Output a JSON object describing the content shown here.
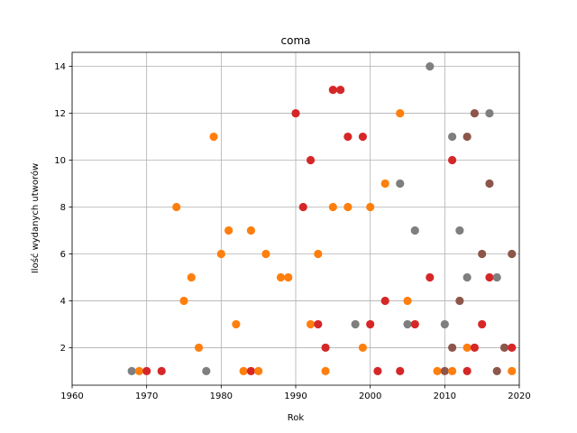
{
  "chart_data": {
    "type": "scatter",
    "title": "coma",
    "xlabel": "Rok",
    "ylabel": "Ilość wydanych utworów",
    "xlim": [
      1960,
      2020
    ],
    "ylim": [
      0.4,
      14.6
    ],
    "xticks": [
      1960,
      1970,
      1980,
      1990,
      2000,
      2010,
      2020
    ],
    "yticks": [
      2,
      4,
      6,
      8,
      10,
      12,
      14
    ],
    "grid": true,
    "colors": {
      "orange": "#ff7f0e",
      "red": "#d62728",
      "gray": "#7f7f7f",
      "brown": "#8c564b"
    },
    "points": [
      {
        "x": 1968,
        "y": 1,
        "c": "gray"
      },
      {
        "x": 1969,
        "y": 1,
        "c": "orange"
      },
      {
        "x": 1970,
        "y": 1,
        "c": "red"
      },
      {
        "x": 1972,
        "y": 1,
        "c": "red"
      },
      {
        "x": 1974,
        "y": 8,
        "c": "orange"
      },
      {
        "x": 1975,
        "y": 4,
        "c": "orange"
      },
      {
        "x": 1976,
        "y": 5,
        "c": "orange"
      },
      {
        "x": 1977,
        "y": 2,
        "c": "orange"
      },
      {
        "x": 1978,
        "y": 1,
        "c": "gray"
      },
      {
        "x": 1979,
        "y": 11,
        "c": "orange"
      },
      {
        "x": 1980,
        "y": 6,
        "c": "orange"
      },
      {
        "x": 1981,
        "y": 7,
        "c": "orange"
      },
      {
        "x": 1982,
        "y": 3,
        "c": "orange"
      },
      {
        "x": 1983,
        "y": 1,
        "c": "orange"
      },
      {
        "x": 1984,
        "y": 7,
        "c": "orange"
      },
      {
        "x": 1984,
        "y": 1,
        "c": "red"
      },
      {
        "x": 1985,
        "y": 1,
        "c": "orange"
      },
      {
        "x": 1986,
        "y": 6,
        "c": "orange"
      },
      {
        "x": 1988,
        "y": 5,
        "c": "orange"
      },
      {
        "x": 1989,
        "y": 5,
        "c": "orange"
      },
      {
        "x": 1990,
        "y": 12,
        "c": "red"
      },
      {
        "x": 1991,
        "y": 8,
        "c": "red"
      },
      {
        "x": 1992,
        "y": 10,
        "c": "red"
      },
      {
        "x": 1992,
        "y": 3,
        "c": "orange"
      },
      {
        "x": 1993,
        "y": 6,
        "c": "orange"
      },
      {
        "x": 1993,
        "y": 3,
        "c": "red"
      },
      {
        "x": 1994,
        "y": 2,
        "c": "red"
      },
      {
        "x": 1994,
        "y": 1,
        "c": "orange"
      },
      {
        "x": 1995,
        "y": 13,
        "c": "red"
      },
      {
        "x": 1995,
        "y": 8,
        "c": "orange"
      },
      {
        "x": 1996,
        "y": 13,
        "c": "red"
      },
      {
        "x": 1997,
        "y": 11,
        "c": "red"
      },
      {
        "x": 1997,
        "y": 8,
        "c": "orange"
      },
      {
        "x": 1998,
        "y": 3,
        "c": "gray"
      },
      {
        "x": 1999,
        "y": 11,
        "c": "red"
      },
      {
        "x": 1999,
        "y": 2,
        "c": "orange"
      },
      {
        "x": 2000,
        "y": 8,
        "c": "orange"
      },
      {
        "x": 2000,
        "y": 3,
        "c": "red"
      },
      {
        "x": 2001,
        "y": 1,
        "c": "red"
      },
      {
        "x": 2002,
        "y": 9,
        "c": "orange"
      },
      {
        "x": 2002,
        "y": 4,
        "c": "red"
      },
      {
        "x": 2004,
        "y": 12,
        "c": "orange"
      },
      {
        "x": 2004,
        "y": 9,
        "c": "gray"
      },
      {
        "x": 2004,
        "y": 1,
        "c": "red"
      },
      {
        "x": 2005,
        "y": 4,
        "c": "orange"
      },
      {
        "x": 2005,
        "y": 3,
        "c": "gray"
      },
      {
        "x": 2006,
        "y": 7,
        "c": "gray"
      },
      {
        "x": 2006,
        "y": 3,
        "c": "red"
      },
      {
        "x": 2008,
        "y": 14,
        "c": "gray"
      },
      {
        "x": 2008,
        "y": 5,
        "c": "red"
      },
      {
        "x": 2009,
        "y": 1,
        "c": "orange"
      },
      {
        "x": 2010,
        "y": 3,
        "c": "gray"
      },
      {
        "x": 2010,
        "y": 1,
        "c": "brown"
      },
      {
        "x": 2011,
        "y": 11,
        "c": "gray"
      },
      {
        "x": 2011,
        "y": 10,
        "c": "red"
      },
      {
        "x": 2011,
        "y": 2,
        "c": "brown"
      },
      {
        "x": 2011,
        "y": 1,
        "c": "orange"
      },
      {
        "x": 2012,
        "y": 7,
        "c": "gray"
      },
      {
        "x": 2012,
        "y": 4,
        "c": "brown"
      },
      {
        "x": 2013,
        "y": 11,
        "c": "brown"
      },
      {
        "x": 2013,
        "y": 5,
        "c": "gray"
      },
      {
        "x": 2013,
        "y": 2,
        "c": "orange"
      },
      {
        "x": 2013,
        "y": 1,
        "c": "red"
      },
      {
        "x": 2014,
        "y": 12,
        "c": "brown"
      },
      {
        "x": 2014,
        "y": 2,
        "c": "red"
      },
      {
        "x": 2015,
        "y": 6,
        "c": "brown"
      },
      {
        "x": 2015,
        "y": 3,
        "c": "red"
      },
      {
        "x": 2016,
        "y": 12,
        "c": "gray"
      },
      {
        "x": 2016,
        "y": 9,
        "c": "brown"
      },
      {
        "x": 2016,
        "y": 5,
        "c": "red"
      },
      {
        "x": 2017,
        "y": 5,
        "c": "gray"
      },
      {
        "x": 2017,
        "y": 1,
        "c": "brown"
      },
      {
        "x": 2018,
        "y": 2,
        "c": "brown"
      },
      {
        "x": 2019,
        "y": 6,
        "c": "brown"
      },
      {
        "x": 2019,
        "y": 2,
        "c": "red"
      },
      {
        "x": 2019,
        "y": 1,
        "c": "orange"
      }
    ]
  }
}
